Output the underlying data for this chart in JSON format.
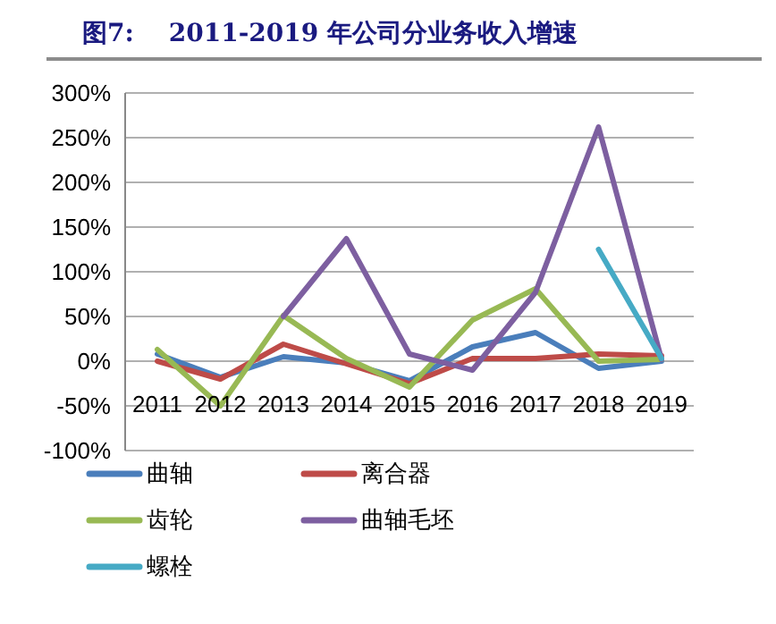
{
  "chart_data": {
    "type": "line",
    "title": "图7:    2011-2019 年公司分业务收入增速",
    "categories": [
      "2011",
      "2012",
      "2013",
      "2014",
      "2015",
      "2016",
      "2017",
      "2018",
      "2019"
    ],
    "series": [
      {
        "name": "曲轴",
        "color": "#4a7ebb",
        "values": [
          8,
          -18,
          5,
          -2,
          -22,
          16,
          32,
          -8,
          0
        ]
      },
      {
        "name": "离合器",
        "color": "#be4b48",
        "values": [
          0,
          -20,
          19,
          -3,
          -25,
          3,
          3,
          8,
          6
        ]
      },
      {
        "name": "齿轮",
        "color": "#98b954",
        "values": [
          13,
          -50,
          51,
          3,
          -29,
          46,
          81,
          0,
          2
        ]
      },
      {
        "name": "曲轴毛坯",
        "color": "#7d5fa0",
        "values": [
          null,
          null,
          50,
          137,
          8,
          -10,
          77,
          262,
          2
        ]
      },
      {
        "name": "螺栓",
        "color": "#46aac5",
        "values": [
          null,
          null,
          null,
          null,
          null,
          null,
          null,
          125,
          3
        ]
      }
    ],
    "ylim": [
      -100,
      300
    ],
    "yticks": [
      {
        "value": -100,
        "label": "-100%"
      },
      {
        "value": -50,
        "label": "-50%"
      },
      {
        "value": 0,
        "label": "0%"
      },
      {
        "value": 50,
        "label": "50%"
      },
      {
        "value": 100,
        "label": "100%"
      },
      {
        "value": 150,
        "label": "150%"
      },
      {
        "value": 200,
        "label": "200%"
      },
      {
        "value": 250,
        "label": "250%"
      },
      {
        "value": 300,
        "label": "300%"
      }
    ],
    "grid": "y",
    "legend": "bottom",
    "marker": "none",
    "line_style": "solid"
  }
}
